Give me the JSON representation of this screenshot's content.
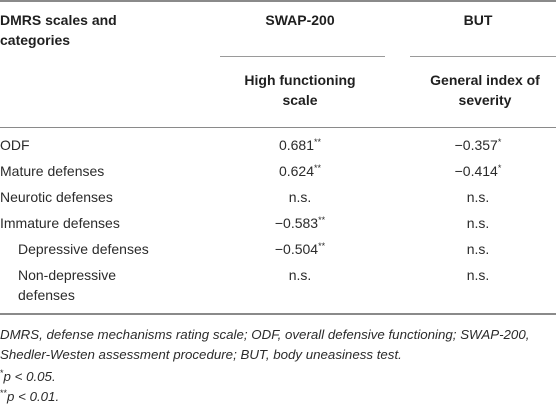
{
  "header": {
    "col1": "DMRS scales and categories",
    "col2": "SWAP-200",
    "col3": "BUT",
    "sub2": "High functioning scale",
    "sub3": "General index of severity"
  },
  "rows": [
    {
      "label": "ODF",
      "swap": "0.681",
      "swap_sup": "**",
      "but": "−0.357",
      "but_sup": "*"
    },
    {
      "label": "Mature defenses",
      "swap": "0.624",
      "swap_sup": "**",
      "but": "−0.414",
      "but_sup": "*"
    },
    {
      "label": "Neurotic defenses",
      "swap": "n.s.",
      "swap_sup": "",
      "but": "n.s.",
      "but_sup": ""
    },
    {
      "label": "Immature defenses",
      "swap": "−0.583",
      "swap_sup": "**",
      "but": "n.s.",
      "but_sup": ""
    },
    {
      "label": "Depressive defenses",
      "swap": "−0.504",
      "swap_sup": "**",
      "but": "n.s.",
      "but_sup": ""
    },
    {
      "label": "Non-depressive defenses",
      "swap": "n.s.",
      "swap_sup": "",
      "but": "n.s.",
      "but_sup": ""
    }
  ],
  "footnotes": {
    "abbrev": "DMRS, defense mechanisms rating scale; ODF, overall defensive functioning; SWAP-200, Shedler-Westen assessment procedure; BUT, body uneasiness test.",
    "p05_mark": "*",
    "p05": "p < 0.05.",
    "p01_mark": "**",
    "p01": "p < 0.01."
  }
}
